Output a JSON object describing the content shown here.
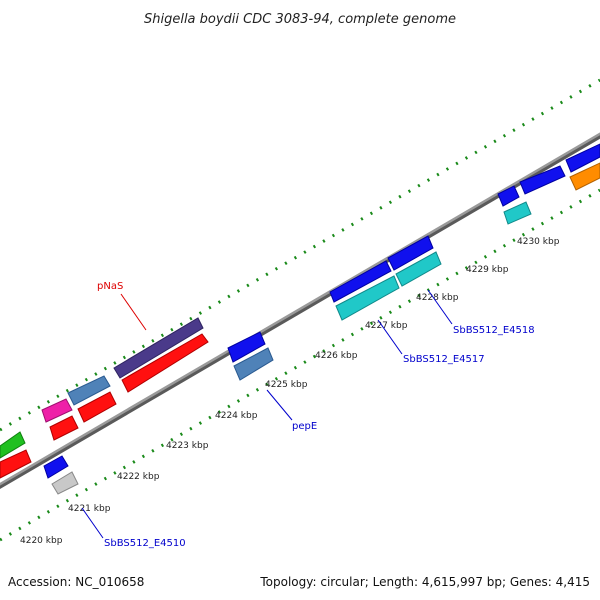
{
  "title": "Shigella boydii CDC 3083-94, complete genome",
  "footer": {
    "accession": "Accession: NC_010658",
    "summary": "Topology: circular; Length: 4,615,997 bp; Genes: 4,415"
  },
  "ticks": [
    {
      "label": "4220 kbp"
    },
    {
      "label": "4221 kbp"
    },
    {
      "label": "4222 kbp"
    },
    {
      "label": "4223 kbp"
    },
    {
      "label": "4224 kbp"
    },
    {
      "label": "4225 kbp"
    },
    {
      "label": "4226 kbp"
    },
    {
      "label": "4227 kbp"
    },
    {
      "label": "4228 kbp"
    },
    {
      "label": "4229 kbp"
    },
    {
      "label": "4230 kbp"
    }
  ],
  "gene_labels": [
    {
      "name": "pNaS",
      "color": "#dd0000"
    },
    {
      "name": "pepE",
      "color": "#0000cc"
    },
    {
      "name": "SbBS512_E4510",
      "color": "#0000cc"
    },
    {
      "name": "SbBS512_E4517",
      "color": "#0000cc"
    },
    {
      "name": "SbBS512_E4518",
      "color": "#0000cc"
    }
  ],
  "feature_colors": {
    "blue": "#1010ee",
    "red": "#ff1010",
    "purple": "#4a3a8a",
    "steel": "#4f82b8",
    "cyan": "#20c8c8",
    "green": "#20c020",
    "magenta": "#ee20a8",
    "gray": "#c8c8c8",
    "orange": "#ff8c00",
    "backbone": "#8c8c8c"
  }
}
